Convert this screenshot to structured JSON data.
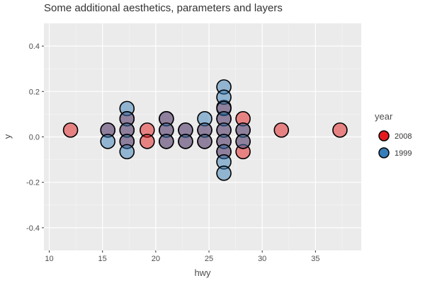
{
  "chart_data": {
    "type": "scatter",
    "title": "Some additional aesthetics, parameters and layers",
    "xlabel": "hwy",
    "ylabel": "y",
    "xlim": [
      9.5,
      39.3
    ],
    "ylim": [
      -0.5,
      0.5
    ],
    "x_ticks": [
      10,
      15,
      20,
      25,
      30,
      35
    ],
    "y_ticks": [
      -0.4,
      -0.2,
      0.0,
      0.2,
      0.4
    ],
    "y_tick_labels": [
      "-0.4",
      "-0.2",
      "0.0",
      "0.2",
      "0.4"
    ],
    "grid": true,
    "legend_position": "right",
    "legend_title": "year",
    "series": [
      {
        "name": "2008",
        "color": "#e41a1c",
        "points": [
          {
            "x": 12,
            "y": 0.03
          },
          {
            "x": 15.5,
            "y": 0.03
          },
          {
            "x": 17.3,
            "y": 0.03
          },
          {
            "x": 17.3,
            "y": -0.02
          },
          {
            "x": 17.3,
            "y": 0.08
          },
          {
            "x": 19.2,
            "y": 0.03
          },
          {
            "x": 19.2,
            "y": -0.02
          },
          {
            "x": 21,
            "y": 0.03
          },
          {
            "x": 21,
            "y": -0.02
          },
          {
            "x": 21,
            "y": 0.08
          },
          {
            "x": 22.8,
            "y": 0.03
          },
          {
            "x": 22.8,
            "y": -0.02
          },
          {
            "x": 24.6,
            "y": 0.03
          },
          {
            "x": 24.6,
            "y": -0.02
          },
          {
            "x": 26.4,
            "y": 0.03
          },
          {
            "x": 26.4,
            "y": -0.02
          },
          {
            "x": 26.4,
            "y": 0.08
          },
          {
            "x": 26.4,
            "y": -0.065
          },
          {
            "x": 26.4,
            "y": 0.13
          },
          {
            "x": 28.2,
            "y": 0.03
          },
          {
            "x": 28.2,
            "y": -0.02
          },
          {
            "x": 28.2,
            "y": 0.08
          },
          {
            "x": 28.2,
            "y": -0.065
          },
          {
            "x": 31.8,
            "y": 0.03
          },
          {
            "x": 37.3,
            "y": 0.03
          }
        ]
      },
      {
        "name": "1999",
        "color": "#377eb8",
        "points": [
          {
            "x": 15.5,
            "y": 0.03
          },
          {
            "x": 15.5,
            "y": -0.02
          },
          {
            "x": 17.3,
            "y": 0.125
          },
          {
            "x": 17.3,
            "y": 0.08
          },
          {
            "x": 17.3,
            "y": 0.03
          },
          {
            "x": 17.3,
            "y": -0.02
          },
          {
            "x": 17.3,
            "y": -0.065
          },
          {
            "x": 21,
            "y": 0.08
          },
          {
            "x": 21,
            "y": 0.03
          },
          {
            "x": 21,
            "y": -0.02
          },
          {
            "x": 22.8,
            "y": 0.03
          },
          {
            "x": 22.8,
            "y": -0.02
          },
          {
            "x": 24.6,
            "y": 0.08
          },
          {
            "x": 24.6,
            "y": 0.03
          },
          {
            "x": 24.6,
            "y": -0.02
          },
          {
            "x": 26.4,
            "y": 0.22
          },
          {
            "x": 26.4,
            "y": 0.175
          },
          {
            "x": 26.4,
            "y": 0.125
          },
          {
            "x": 26.4,
            "y": 0.08
          },
          {
            "x": 26.4,
            "y": 0.03
          },
          {
            "x": 26.4,
            "y": -0.02
          },
          {
            "x": 26.4,
            "y": -0.065
          },
          {
            "x": 26.4,
            "y": -0.11
          },
          {
            "x": 26.4,
            "y": -0.16
          },
          {
            "x": 28.2,
            "y": 0.03
          },
          {
            "x": 28.2,
            "y": -0.02
          }
        ]
      }
    ],
    "legend": [
      {
        "label": "2008",
        "color": "#e41a1c"
      },
      {
        "label": "1999",
        "color": "#377eb8"
      }
    ]
  }
}
